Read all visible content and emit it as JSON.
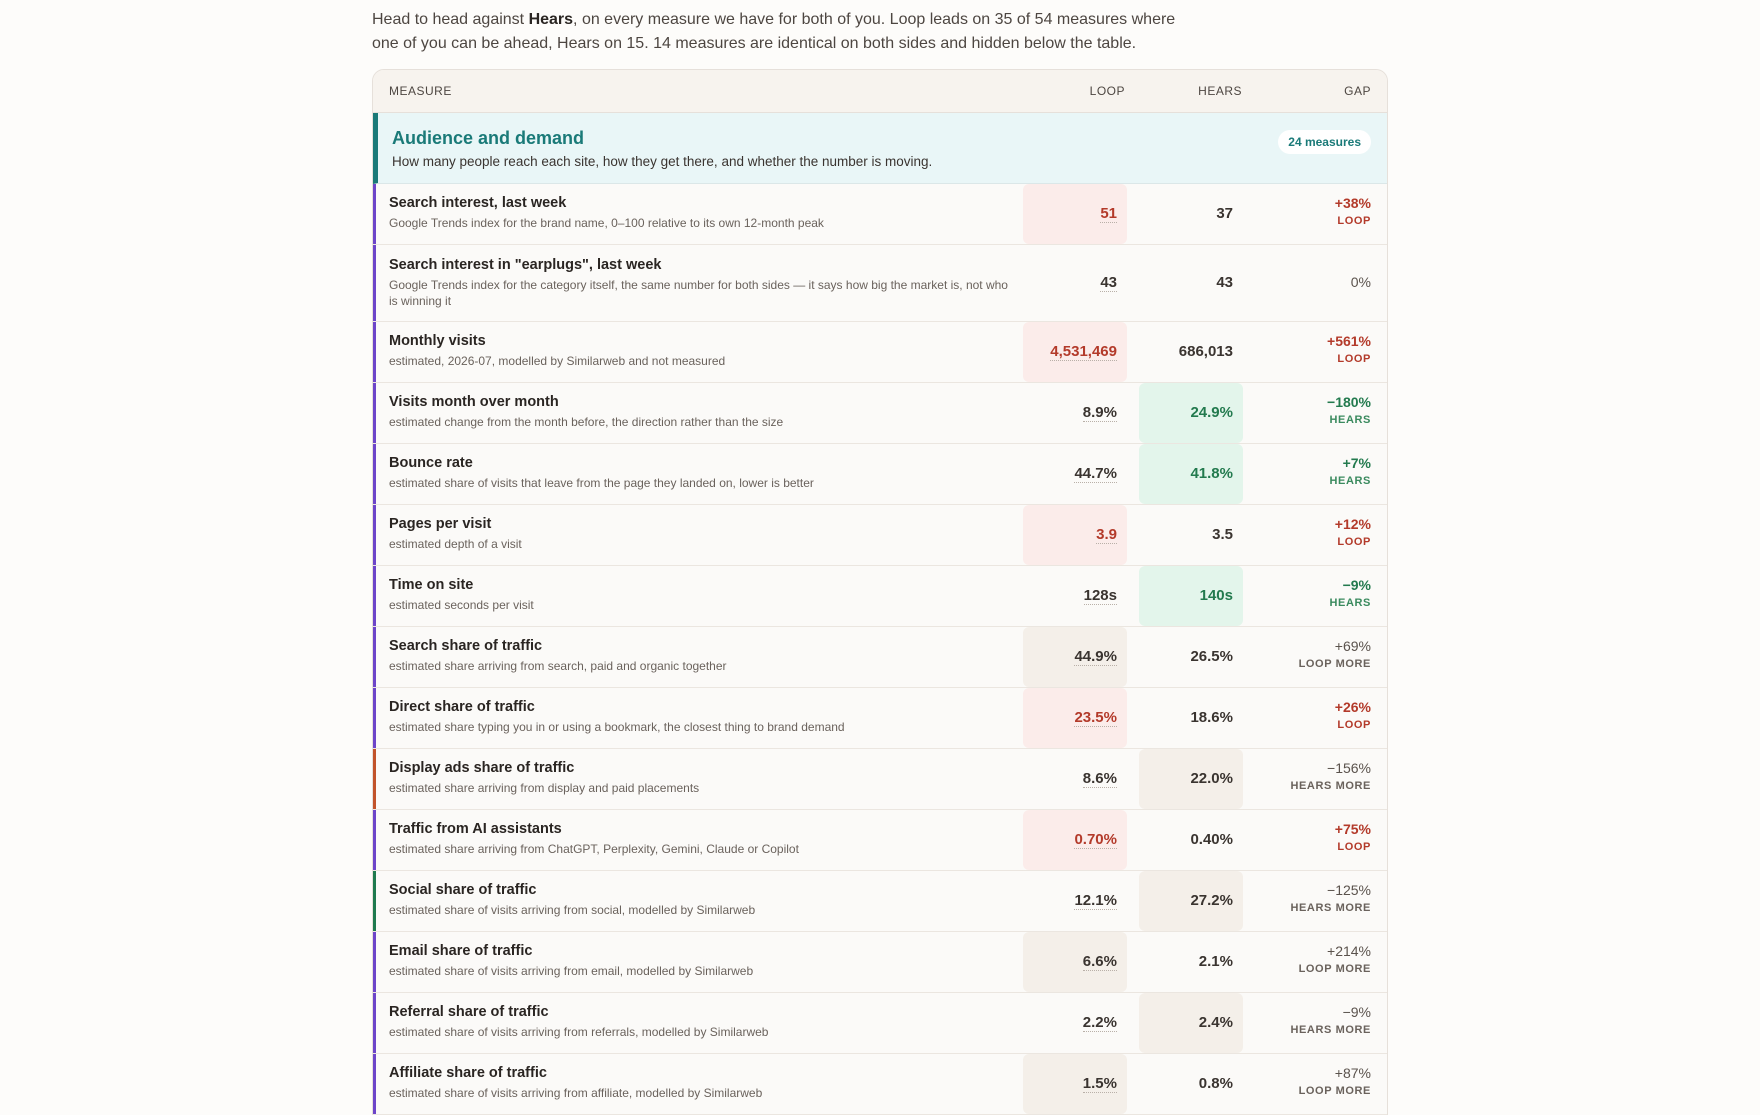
{
  "intro": {
    "pre": "Head to head against ",
    "competitor": "Hears",
    "post": ", on every measure we have for both of you. Loop leads on 35 of 54 measures where one of you can be ahead, Hears on 15. 14 measures are identical on both sides and hidden below the table."
  },
  "table": {
    "headers": {
      "measure": "MEASURE",
      "loop": "LOOP",
      "hears": "HEARS",
      "gap": "GAP"
    },
    "group": {
      "title": "Audience and demand",
      "description": "How many people reach each site, how they get there, and whether the number is moving.",
      "badge": "24 measures"
    },
    "rows": [
      {
        "label": "Search interest, last week",
        "desc": "Google Trends index for the brand name, 0–100 relative to its own 12-month peak",
        "loop": "51",
        "hears": "37",
        "gap": "+38%",
        "who": "LOOP",
        "winner": "loop"
      },
      {
        "label": "Search interest in \"earplugs\", last week",
        "desc": "Google Trends index for the category itself, the same number for both sides — it says how big the market is, not who is winning it",
        "loop": "43",
        "hears": "43",
        "gap": "0%",
        "who": "",
        "winner": "none"
      },
      {
        "label": "Monthly visits",
        "desc": "estimated, 2026-07, modelled by Similarweb and not measured",
        "loop": "4,531,469",
        "hears": "686,013",
        "gap": "+561%",
        "who": "LOOP",
        "winner": "loop"
      },
      {
        "label": "Visits month over month",
        "desc": "estimated change from the month before, the direction rather than the size",
        "loop": "8.9%",
        "hears": "24.9%",
        "gap": "−180%",
        "who": "HEARS",
        "winner": "hears"
      },
      {
        "label": "Bounce rate",
        "desc": "estimated share of visits that leave from the page they landed on, lower is better",
        "loop": "44.7%",
        "hears": "41.8%",
        "gap": "+7%",
        "who": "HEARS",
        "winner": "hears"
      },
      {
        "label": "Pages per visit",
        "desc": "estimated depth of a visit",
        "loop": "3.9",
        "hears": "3.5",
        "gap": "+12%",
        "who": "LOOP",
        "winner": "loop"
      },
      {
        "label": "Time on site",
        "desc": "estimated seconds per visit",
        "loop": "128s",
        "hears": "140s",
        "gap": "−9%",
        "who": "HEARS",
        "winner": "hears"
      },
      {
        "label": "Search share of traffic",
        "desc": "estimated share arriving from search, paid and organic together",
        "loop": "44.9%",
        "hears": "26.5%",
        "gap": "+69%",
        "who": "LOOP MORE",
        "winner": "loop-more"
      },
      {
        "label": "Direct share of traffic",
        "desc": "estimated share typing you in or using a bookmark, the closest thing to brand demand",
        "loop": "23.5%",
        "hears": "18.6%",
        "gap": "+26%",
        "who": "LOOP",
        "winner": "loop"
      },
      {
        "label": "Display ads share of traffic",
        "desc": "estimated share arriving from display and paid placements",
        "loop": "8.6%",
        "hears": "22.0%",
        "gap": "−156%",
        "who": "HEARS MORE",
        "winner": "hears-more"
      },
      {
        "label": "Traffic from AI assistants",
        "desc": "estimated share arriving from ChatGPT, Perplexity, Gemini, Claude or Copilot",
        "loop": "0.70%",
        "hears": "0.40%",
        "gap": "+75%",
        "who": "LOOP",
        "winner": "loop"
      },
      {
        "label": "Social share of traffic",
        "desc": "estimated share of visits arriving from social, modelled by Similarweb",
        "loop": "12.1%",
        "hears": "27.2%",
        "gap": "−125%",
        "who": "HEARS MORE",
        "winner": "hears-more"
      },
      {
        "label": "Email share of traffic",
        "desc": "estimated share of visits arriving from email, modelled by Similarweb",
        "loop": "6.6%",
        "hears": "2.1%",
        "gap": "+214%",
        "who": "LOOP MORE",
        "winner": "loop-more"
      },
      {
        "label": "Referral share of traffic",
        "desc": "estimated share of visits arriving from referrals, modelled by Similarweb",
        "loop": "2.2%",
        "hears": "2.4%",
        "gap": "−9%",
        "who": "HEARS MORE",
        "winner": "hears-more"
      },
      {
        "label": "Affiliate share of traffic",
        "desc": "estimated share of visits arriving from affiliate, modelled by Similarweb",
        "loop": "1.5%",
        "hears": "0.8%",
        "gap": "+87%",
        "who": "LOOP MORE",
        "winner": "loop-more"
      }
    ]
  },
  "colors": {
    "accent_teal": "#1a7a78",
    "loop_red": "#b33a2a",
    "hears_green": "#237a4e",
    "bar_purple": "#6d45c9",
    "bar_orange": "#c2532a",
    "bar_green": "#1f7a4e"
  }
}
